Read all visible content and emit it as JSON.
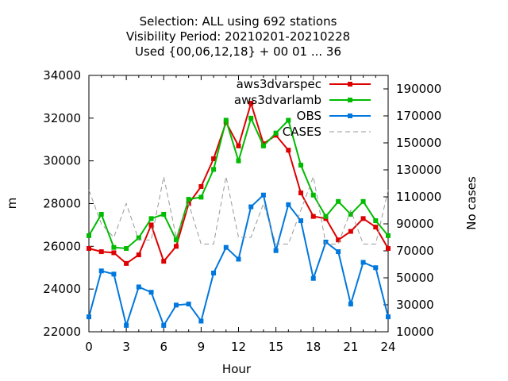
{
  "chart_data": {
    "type": "line",
    "title_lines": [
      "Selection: ALL using   692 stations",
      "Visibility   Period: 20210201-20210228",
      "Used {00,06,12,18} + 00 01 ... 36"
    ],
    "xlabel": "Hour",
    "ylabel": "m",
    "y2label": "No cases",
    "xlim": [
      0,
      24
    ],
    "ylim": [
      22000,
      34000
    ],
    "y2lim": [
      10000,
      200000
    ],
    "xticks": [
      0,
      3,
      6,
      9,
      12,
      15,
      18,
      21,
      24
    ],
    "yticks": [
      22000,
      24000,
      26000,
      28000,
      30000,
      32000,
      34000
    ],
    "y2ticks": [
      10000,
      30000,
      50000,
      70000,
      90000,
      110000,
      130000,
      150000,
      170000,
      190000
    ],
    "legend_position": "top-right",
    "grid": false,
    "x": [
      0,
      1,
      2,
      3,
      4,
      5,
      6,
      7,
      8,
      9,
      10,
      11,
      12,
      13,
      14,
      15,
      16,
      17,
      18,
      19,
      20,
      21,
      22,
      23,
      24
    ],
    "series": [
      {
        "name": "aws3dvarspec",
        "color": "#dd0000",
        "axis": "left",
        "values": [
          25900,
          25750,
          25700,
          25200,
          25600,
          27000,
          25300,
          26000,
          28000,
          28800,
          30100,
          31800,
          30700,
          32700,
          30800,
          31200,
          30500,
          28500,
          27400,
          27300,
          26300,
          26700,
          27300,
          26900,
          25900
        ]
      },
      {
        "name": "aws3dvarlamb",
        "color": "#00bb00",
        "axis": "left",
        "values": [
          26500,
          27500,
          25950,
          25900,
          26400,
          27300,
          27500,
          26300,
          28200,
          28300,
          29600,
          31900,
          30000,
          32000,
          30700,
          31300,
          31900,
          29800,
          28400,
          27400,
          28100,
          27500,
          28100,
          27200,
          26500
        ]
      },
      {
        "name": "OBS",
        "color": "#0077dd",
        "axis": "left",
        "values": [
          22700,
          24850,
          24700,
          22300,
          24100,
          23850,
          22300,
          23250,
          23300,
          22500,
          24750,
          25950,
          25400,
          27850,
          28400,
          25800,
          27950,
          27200,
          24500,
          26200,
          25750,
          23300,
          25250,
          25000,
          22700
        ]
      },
      {
        "name": "CASES",
        "color": "#999999",
        "axis": "right",
        "dashed": true,
        "values": [
          115000,
          90000,
          80000,
          105000,
          78000,
          78000,
          125000,
          80000,
          105000,
          75000,
          75000,
          125000,
          80000,
          80000,
          105000,
          75000,
          75000,
          100000,
          125000,
          75000,
          75000,
          100000,
          75000,
          75000,
          115000
        ]
      }
    ]
  }
}
